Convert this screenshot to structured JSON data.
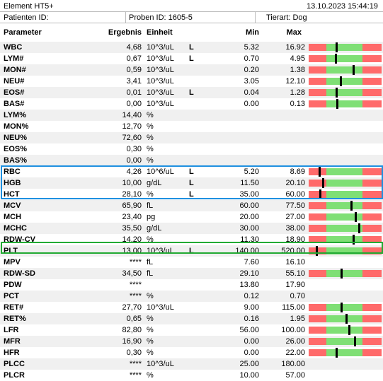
{
  "header": {
    "device": "Element HT5+",
    "datetime": "13.10.2023 15:44:19",
    "patient_label": "Patienten ID:",
    "sample_label": "Proben ID: 1605-5",
    "species_label": "Tierart: Dog"
  },
  "columns": {
    "parameter": "Parameter",
    "result": "Ergebnis",
    "unit": "Einheit",
    "min": "Min",
    "max": "Max"
  },
  "colors": {
    "low": "#ff6a6a",
    "normal": "#7fdf75",
    "blue_box": "#1e90e0",
    "green_box": "#22aa33"
  },
  "rows": [
    {
      "param": "WBC",
      "result": "4,68",
      "unit": "10^3/uL",
      "flag": "L",
      "min": "5.32",
      "max": "16.92",
      "marker": 0.38
    },
    {
      "param": "LYM#",
      "result": "0,67",
      "unit": "10^3/uL",
      "flag": "L",
      "min": "0.70",
      "max": "4.95",
      "marker": 0.37
    },
    {
      "param": "MON#",
      "result": "0,59",
      "unit": "10^3/uL",
      "flag": "",
      "min": "0.20",
      "max": "1.38",
      "marker": 0.61
    },
    {
      "param": "NEU#",
      "result": "3,41",
      "unit": "10^3/uL",
      "flag": "",
      "min": "3.05",
      "max": "12.10",
      "marker": 0.44
    },
    {
      "param": "EOS#",
      "result": "0,01",
      "unit": "10^3/uL",
      "flag": "L",
      "min": "0.04",
      "max": "1.28",
      "marker": 0.38
    },
    {
      "param": "BAS#",
      "result": "0,00",
      "unit": "10^3/uL",
      "flag": "",
      "min": "0.00",
      "max": "0.13",
      "marker": 0.39
    },
    {
      "param": "LYM%",
      "result": "14,40",
      "unit": "%",
      "flag": "",
      "min": "",
      "max": "",
      "marker": null
    },
    {
      "param": "MON%",
      "result": "12,70",
      "unit": "%",
      "flag": "",
      "min": "",
      "max": "",
      "marker": null
    },
    {
      "param": "NEU%",
      "result": "72,60",
      "unit": "%",
      "flag": "",
      "min": "",
      "max": "",
      "marker": null
    },
    {
      "param": "EOS%",
      "result": "0,30",
      "unit": "%",
      "flag": "",
      "min": "",
      "max": "",
      "marker": null
    },
    {
      "param": "BAS%",
      "result": "0,00",
      "unit": "%",
      "flag": "",
      "min": "",
      "max": "",
      "marker": null
    },
    {
      "param": "RBC",
      "result": "4,26",
      "unit": "10^6/uL",
      "flag": "L",
      "min": "5.20",
      "max": "8.69",
      "marker": 0.15
    },
    {
      "param": "HGB",
      "result": "10,00",
      "unit": "g/dL",
      "flag": "L",
      "min": "11.50",
      "max": "20.10",
      "marker": 0.19
    },
    {
      "param": "HCT",
      "result": "28,10",
      "unit": "%",
      "flag": "L",
      "min": "35.00",
      "max": "60.00",
      "marker": 0.16
    },
    {
      "param": "MCV",
      "result": "65,90",
      "unit": "fL",
      "flag": "",
      "min": "60.00",
      "max": "77.50",
      "marker": 0.58
    },
    {
      "param": "MCH",
      "result": "23,40",
      "unit": "pg",
      "flag": "",
      "min": "20.00",
      "max": "27.00",
      "marker": 0.64
    },
    {
      "param": "MCHC",
      "result": "35,50",
      "unit": "g/dL",
      "flag": "",
      "min": "30.00",
      "max": "38.00",
      "marker": 0.69
    },
    {
      "param": "RDW-CV",
      "result": "14,20",
      "unit": "%",
      "flag": "",
      "min": "11.30",
      "max": "18.90",
      "marker": 0.61
    },
    {
      "param": "PLT",
      "result": "13,00",
      "unit": "10^3/uL",
      "flag": "L",
      "min": "140.00",
      "max": "520.00",
      "marker": 0.11
    },
    {
      "param": "MPV",
      "result": "****",
      "unit": "fL",
      "flag": "",
      "min": "7.60",
      "max": "16.10",
      "marker": null
    },
    {
      "param": "RDW-SD",
      "result": "34,50",
      "unit": "fL",
      "flag": "",
      "min": "29.10",
      "max": "55.10",
      "marker": 0.45
    },
    {
      "param": "PDW",
      "result": "****",
      "unit": "",
      "flag": "",
      "min": "13.80",
      "max": "17.90",
      "marker": null
    },
    {
      "param": "PCT",
      "result": "****",
      "unit": "%",
      "flag": "",
      "min": "0.12",
      "max": "0.70",
      "marker": null
    },
    {
      "param": "RET#",
      "result": "27,70",
      "unit": "10^3/uL",
      "flag": "",
      "min": "9.00",
      "max": "115.00",
      "marker": 0.45
    },
    {
      "param": "RET%",
      "result": "0,65",
      "unit": "%",
      "flag": "",
      "min": "0.16",
      "max": "1.95",
      "marker": 0.51
    },
    {
      "param": "LFR",
      "result": "82,80",
      "unit": "%",
      "flag": "",
      "min": "56.00",
      "max": "100.00",
      "marker": 0.55
    },
    {
      "param": "MFR",
      "result": "16,90",
      "unit": "%",
      "flag": "",
      "min": "0.00",
      "max": "26.00",
      "marker": 0.63
    },
    {
      "param": "HFR",
      "result": "0,30",
      "unit": "%",
      "flag": "",
      "min": "0.00",
      "max": "22.00",
      "marker": 0.38
    },
    {
      "param": "PLCC",
      "result": "****",
      "unit": "10^3/uL",
      "flag": "",
      "min": "25.00",
      "max": "180.00",
      "marker": null
    },
    {
      "param": "PLCR",
      "result": "****",
      "unit": "%",
      "flag": "",
      "min": "10.00",
      "max": "57.00",
      "marker": null
    }
  ]
}
